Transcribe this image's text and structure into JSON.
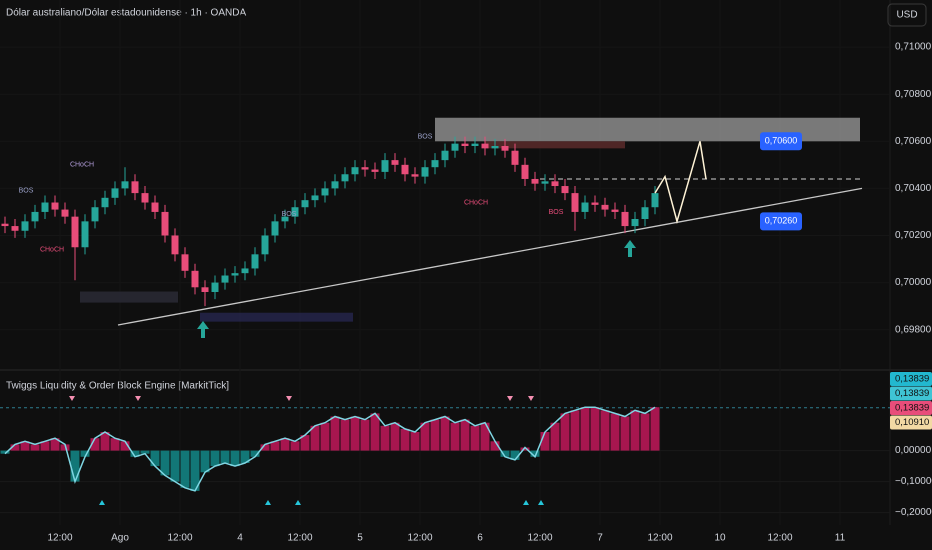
{
  "toolbar": {
    "currency": "USD"
  },
  "chart_data": [
    {
      "type": "candlestick",
      "title": "Dólar australiano/Dólar estadounidense · 1h · OANDA",
      "colors": {
        "up": "#26a69a",
        "down": "#e84d7a"
      },
      "x": [
        1,
        3,
        5,
        7,
        9,
        11,
        13,
        15,
        17,
        19,
        21,
        23,
        25,
        27,
        29,
        31,
        33,
        35,
        37,
        39,
        41,
        43,
        45,
        47,
        49,
        51,
        53,
        55,
        57,
        59,
        61,
        63,
        65,
        67,
        69,
        71,
        73,
        75,
        77,
        79,
        81,
        83,
        85,
        87,
        89,
        91,
        93,
        95,
        97,
        99,
        101,
        103,
        105,
        107,
        109,
        111,
        113,
        115,
        117,
        119,
        121,
        123,
        125,
        127,
        129,
        131
      ],
      "open": [
        0.7025,
        0.7024,
        0.7022,
        0.7026,
        0.703,
        0.7034,
        0.7031,
        0.7028,
        0.7015,
        0.7026,
        0.7032,
        0.7036,
        0.704,
        0.7043,
        0.7038,
        0.7034,
        0.703,
        0.702,
        0.7012,
        0.7005,
        0.6998,
        0.6996,
        0.7,
        0.7003,
        0.7004,
        0.7006,
        0.7012,
        0.702,
        0.7026,
        0.7028,
        0.7032,
        0.7035,
        0.7037,
        0.704,
        0.7043,
        0.7046,
        0.7049,
        0.7048,
        0.7047,
        0.7052,
        0.705,
        0.7046,
        0.7045,
        0.7049,
        0.7052,
        0.7056,
        0.7059,
        0.7058,
        0.7059,
        0.7057,
        0.7058,
        0.7056,
        0.705,
        0.7044,
        0.7042,
        0.7043,
        0.7041,
        0.7038,
        0.703,
        0.7034,
        0.7033,
        0.7031,
        0.703,
        0.7024,
        0.7027,
        0.7032
      ],
      "high": [
        0.7028,
        0.7027,
        0.7029,
        0.7033,
        0.7037,
        0.7037,
        0.7034,
        0.7031,
        0.7029,
        0.7035,
        0.7039,
        0.7043,
        0.7049,
        0.7046,
        0.7041,
        0.7037,
        0.7033,
        0.7023,
        0.7015,
        0.7008,
        0.7001,
        0.7003,
        0.7006,
        0.7007,
        0.7009,
        0.7015,
        0.7023,
        0.7029,
        0.7031,
        0.7035,
        0.7038,
        0.704,
        0.7043,
        0.7046,
        0.7049,
        0.7052,
        0.7052,
        0.7051,
        0.7055,
        0.7055,
        0.7053,
        0.7049,
        0.7052,
        0.7055,
        0.7059,
        0.7062,
        0.7062,
        0.7062,
        0.7062,
        0.7061,
        0.7061,
        0.7059,
        0.7053,
        0.7047,
        0.7046,
        0.7046,
        0.7044,
        0.7041,
        0.7037,
        0.7037,
        0.7036,
        0.7034,
        0.7033,
        0.703,
        0.7035,
        0.7041
      ],
      "low": [
        0.7021,
        0.7019,
        0.7019,
        0.7023,
        0.7027,
        0.7028,
        0.7025,
        0.7001,
        0.7012,
        0.7023,
        0.7029,
        0.7033,
        0.7037,
        0.7035,
        0.7031,
        0.7027,
        0.7017,
        0.7009,
        0.7002,
        0.6995,
        0.699,
        0.6993,
        0.6997,
        0.7,
        0.7001,
        0.7003,
        0.7009,
        0.7017,
        0.7023,
        0.7025,
        0.7029,
        0.7032,
        0.7034,
        0.7037,
        0.704,
        0.7043,
        0.7045,
        0.7044,
        0.7044,
        0.7047,
        0.7043,
        0.7042,
        0.7042,
        0.7046,
        0.7049,
        0.7053,
        0.7055,
        0.7055,
        0.7054,
        0.7054,
        0.7053,
        0.7047,
        0.7041,
        0.7039,
        0.7039,
        0.7038,
        0.7035,
        0.7022,
        0.7027,
        0.703,
        0.7028,
        0.7027,
        0.7021,
        0.7021,
        0.7024,
        0.7029
      ],
      "close": [
        0.7024,
        0.7022,
        0.7026,
        0.703,
        0.7034,
        0.7031,
        0.7028,
        0.7015,
        0.7026,
        0.7032,
        0.7036,
        0.704,
        0.7043,
        0.7038,
        0.7034,
        0.703,
        0.702,
        0.7012,
        0.7005,
        0.6998,
        0.6996,
        0.7,
        0.7003,
        0.7004,
        0.7006,
        0.7012,
        0.702,
        0.7026,
        0.7028,
        0.7032,
        0.7035,
        0.7037,
        0.704,
        0.7043,
        0.7046,
        0.7049,
        0.7048,
        0.7047,
        0.7052,
        0.705,
        0.7046,
        0.7045,
        0.7049,
        0.7052,
        0.7056,
        0.7059,
        0.7058,
        0.7059,
        0.7057,
        0.7058,
        0.7056,
        0.705,
        0.7044,
        0.7042,
        0.7043,
        0.7041,
        0.7038,
        0.703,
        0.7034,
        0.7033,
        0.7031,
        0.703,
        0.7024,
        0.7027,
        0.7032,
        0.7038
      ],
      "xlim": [
        0,
        178
      ],
      "xticks": [
        {
          "value": 12,
          "label": "12:00"
        },
        {
          "value": 24,
          "label": "Ago"
        },
        {
          "value": 36,
          "label": "12:00"
        },
        {
          "value": 48,
          "label": "4"
        },
        {
          "value": 60,
          "label": "12:00"
        },
        {
          "value": 72,
          "label": "5"
        },
        {
          "value": 84,
          "label": "12:00"
        },
        {
          "value": 96,
          "label": "6"
        },
        {
          "value": 108,
          "label": "12:00"
        },
        {
          "value": 120,
          "label": "7"
        },
        {
          "value": 132,
          "label": "12:00"
        },
        {
          "value": 144,
          "label": "10"
        },
        {
          "value": 156,
          "label": "12:00"
        },
        {
          "value": 168,
          "label": "11"
        }
      ],
      "ylim": [
        0.6965,
        0.712
      ],
      "yticks": [
        {
          "value": 0.71,
          "label": "0,71000"
        },
        {
          "value": 0.708,
          "label": "0,70800"
        },
        {
          "value": 0.706,
          "label": "0,70600"
        },
        {
          "value": 0.704,
          "label": "0,70400"
        },
        {
          "value": 0.702,
          "label": "0,70200"
        },
        {
          "value": 0.7,
          "label": "0,70000"
        },
        {
          "value": 0.698,
          "label": "0,69800"
        }
      ],
      "zones": [
        {
          "x": [
            87,
            172
          ],
          "y": [
            0.706,
            0.707
          ],
          "color": "#8c8c8c"
        },
        {
          "x": [
            97,
            125
          ],
          "y": [
            0.7057,
            0.706
          ],
          "color": "#5a2a2a"
        },
        {
          "x": [
            16,
            35.6
          ],
          "y": [
            0.69915,
            0.69962
          ],
          "color": "#2a2a35"
        },
        {
          "x": [
            40,
            70.6
          ],
          "y": [
            0.69834,
            0.69872
          ],
          "color": "#24244a"
        }
      ],
      "trendline": {
        "x": [
          23.6,
          172.4
        ],
        "y": [
          0.6982,
          0.704
        ],
        "color": "#c8c8c8"
      },
      "projection": {
        "x": [
          131,
          133,
          135.4,
          140,
          141.2
        ],
        "y": [
          0.7038,
          0.7045,
          0.7026,
          0.706,
          0.7044
        ],
        "color": "#fff3d6"
      },
      "level": {
        "value": 0.7044,
        "x": [
          108,
          172
        ],
        "color": "#d0d0d0"
      },
      "labels": [
        {
          "text": "BOS",
          "x": 5.2,
          "y": 0.7039,
          "color": "#9aa0c8"
        },
        {
          "text": "CHoCH",
          "x": 16.4,
          "y": 0.705,
          "color": "#b39ddb"
        },
        {
          "text": "CHoCH",
          "x": 10.4,
          "y": 0.7014,
          "color": "#e84d7a"
        },
        {
          "text": "BOS",
          "x": 57.8,
          "y": 0.7029,
          "color": "#9aa0c8"
        },
        {
          "text": "BOS",
          "x": 85,
          "y": 0.7062,
          "color": "#9aa0c8"
        },
        {
          "text": "CHoCH",
          "x": 95.2,
          "y": 0.7034,
          "color": "#e84d7a"
        },
        {
          "text": "BOS",
          "x": 111.2,
          "y": 0.703,
          "color": "#e84d7a"
        }
      ],
      "price_tags": [
        {
          "value": 0.706,
          "label": "0,70600"
        },
        {
          "value": 0.7026,
          "label": "0,70260"
        }
      ]
    },
    {
      "type": "oscillator",
      "title": "Twiggs Liquidity & Order Block Engine [MarkitTick]",
      "colors": {
        "positive": "#c2185b",
        "negative": "#138a8a",
        "line": "#7fd6e3"
      },
      "x": [
        1,
        3,
        5,
        7,
        9,
        11,
        13,
        15,
        17,
        19,
        21,
        23,
        25,
        27,
        29,
        31,
        33,
        35,
        37,
        39,
        41,
        43,
        45,
        47,
        49,
        51,
        53,
        55,
        57,
        59,
        61,
        63,
        65,
        67,
        69,
        71,
        73,
        75,
        77,
        79,
        81,
        83,
        85,
        87,
        89,
        91,
        93,
        95,
        97,
        99,
        101,
        103,
        105,
        107,
        109,
        111,
        113,
        115,
        117,
        119,
        121,
        123,
        125,
        127,
        129,
        131
      ],
      "values": [
        -0.01,
        0.02,
        0.03,
        0.02,
        0.03,
        0.04,
        0.02,
        -0.1,
        -0.02,
        0.04,
        0.06,
        0.04,
        0.03,
        -0.02,
        -0.01,
        -0.05,
        -0.08,
        -0.1,
        -0.12,
        -0.13,
        -0.07,
        -0.05,
        -0.04,
        -0.05,
        -0.04,
        -0.02,
        0.02,
        0.03,
        0.04,
        0.03,
        0.05,
        0.08,
        0.09,
        0.11,
        0.1,
        0.11,
        0.1,
        0.12,
        0.08,
        0.09,
        0.07,
        0.06,
        0.09,
        0.1,
        0.11,
        0.09,
        0.1,
        0.08,
        0.09,
        0.03,
        -0.02,
        -0.03,
        0.01,
        -0.02,
        0.06,
        0.09,
        0.12,
        0.13,
        0.14,
        0.14,
        0.13,
        0.12,
        0.11,
        0.13,
        0.12,
        0.14
      ],
      "xlim": [
        0,
        178
      ],
      "ylim": [
        -0.24,
        0.26
      ],
      "yticks": [
        {
          "value": 0,
          "label": "0,00000"
        },
        {
          "value": -0.1,
          "label": "−0,10000"
        },
        {
          "value": -0.2,
          "label": "−0,20000"
        }
      ],
      "badges": [
        {
          "value": 0.13839,
          "label": "0,13839",
          "color": "#22b8cf"
        },
        {
          "value": 0.13839,
          "label": "0,13839",
          "color": "#3fc4d4"
        },
        {
          "value": 0.13839,
          "label": "0,13839",
          "color": "#e84d7a"
        },
        {
          "value": 0.1091,
          "label": "0,10910",
          "color": "#f3d9a4"
        }
      ]
    }
  ]
}
